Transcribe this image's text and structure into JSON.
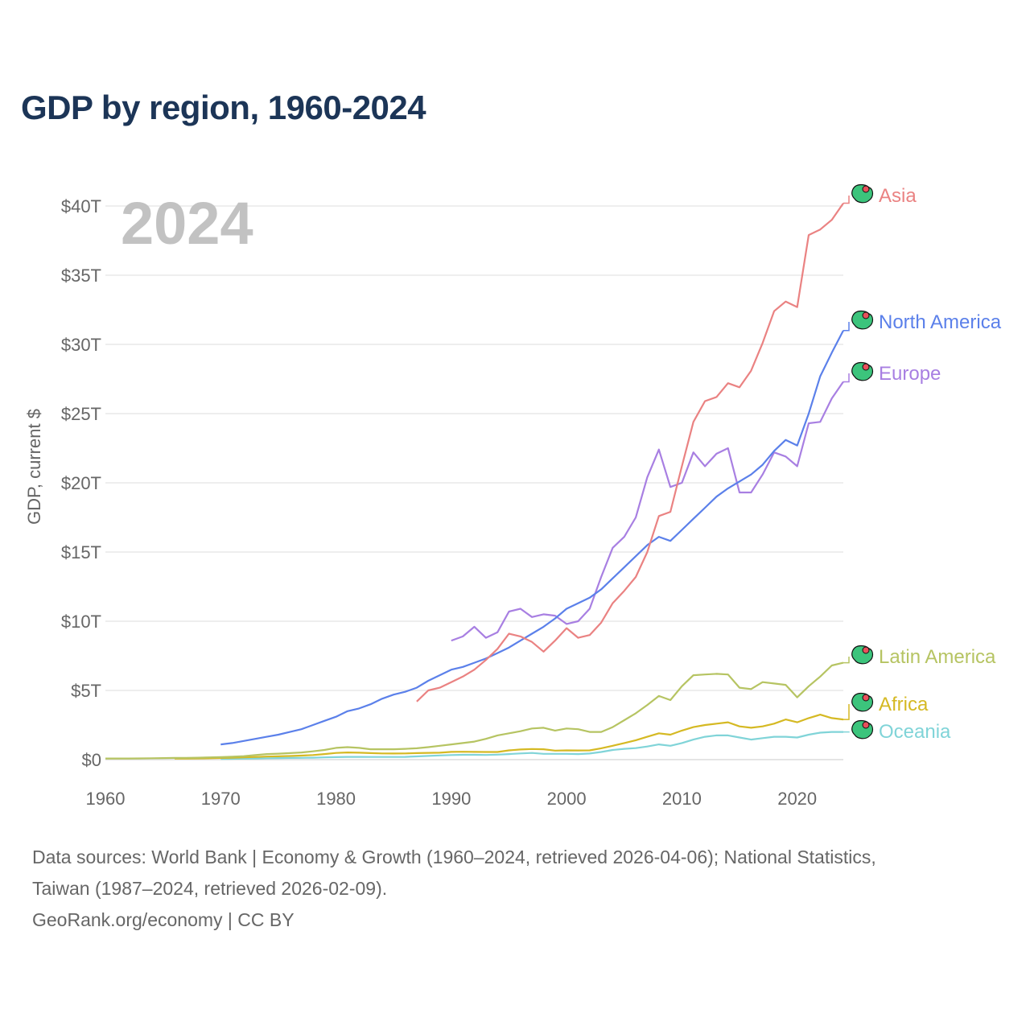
{
  "title": "GDP by region, 1960-2024",
  "footer": {
    "line1": "Data sources: World Bank | Economy & Growth (1960–2024, retrieved 2026-04-06); National Statistics,",
    "line2": "Taiwan (1987–2024, retrieved 2026-02-09).",
    "line3": "GeoRank.org/economy | CC BY"
  },
  "chart_data": {
    "type": "line",
    "title": "GDP by region, 1960-2024",
    "watermark_year": "2024",
    "xlabel": "",
    "ylabel": "GDP, current $",
    "xlim": [
      1960,
      2024
    ],
    "ylim": [
      0,
      40
    ],
    "y_unit": "trillion USD",
    "x_ticks": [
      1960,
      1970,
      1980,
      1990,
      2000,
      2010,
      2020
    ],
    "y_ticks": [
      {
        "v": 0,
        "label": "$0"
      },
      {
        "v": 5,
        "label": "$5T"
      },
      {
        "v": 10,
        "label": "$10T"
      },
      {
        "v": 15,
        "label": "$15T"
      },
      {
        "v": 20,
        "label": "$20T"
      },
      {
        "v": 25,
        "label": "$25T"
      },
      {
        "v": 30,
        "label": "$30T"
      },
      {
        "v": 35,
        "label": "$35T"
      },
      {
        "v": 40,
        "label": "$40T"
      }
    ],
    "grid": true,
    "legend": "end-of-line labels (right)",
    "series": [
      {
        "name": "Asia",
        "color": "#ea8282",
        "start": 1987,
        "values": [
          4.2,
          5.0,
          5.2,
          5.6,
          6.0,
          6.5,
          7.2,
          8.0,
          9.1,
          8.9,
          8.5,
          7.8,
          8.6,
          9.5,
          8.8,
          9.0,
          9.9,
          11.3,
          12.2,
          13.2,
          15.0,
          17.6,
          17.9,
          21.2,
          24.4,
          25.9,
          26.2,
          27.2,
          26.9,
          28.1,
          30.1,
          32.4,
          33.1,
          32.7,
          37.9,
          38.3,
          39.0,
          40.2
        ]
      },
      {
        "name": "North America",
        "color": "#5b80ea",
        "start": 1970,
        "values": [
          1.1,
          1.2,
          1.35,
          1.5,
          1.65,
          1.8,
          2.0,
          2.2,
          2.5,
          2.8,
          3.1,
          3.5,
          3.7,
          4.0,
          4.4,
          4.7,
          4.9,
          5.2,
          5.7,
          6.1,
          6.5,
          6.7,
          7.0,
          7.3,
          7.7,
          8.1,
          8.6,
          9.1,
          9.6,
          10.2,
          10.9,
          11.3,
          11.7,
          12.3,
          13.1,
          13.9,
          14.7,
          15.5,
          16.1,
          15.8,
          16.6,
          17.4,
          18.2,
          19.0,
          19.6,
          20.1,
          20.6,
          21.3,
          22.3,
          23.1,
          22.7,
          25.0,
          27.7,
          29.4,
          31.0
        ]
      },
      {
        "name": "Europe",
        "color": "#a87fe2",
        "start": 1990,
        "values": [
          8.6,
          8.9,
          9.6,
          8.8,
          9.2,
          10.7,
          10.9,
          10.3,
          10.5,
          10.4,
          9.8,
          10.0,
          10.9,
          13.2,
          15.3,
          16.1,
          17.5,
          20.4,
          22.4,
          19.7,
          20.0,
          22.2,
          21.2,
          22.1,
          22.5,
          19.3,
          19.3,
          20.6,
          22.2,
          21.9,
          21.2,
          24.3,
          24.4,
          26.1,
          27.3
        ]
      },
      {
        "name": "Latin America",
        "color": "#b6c462",
        "start": 1960,
        "values": [
          0.08,
          0.08,
          0.08,
          0.09,
          0.1,
          0.11,
          0.12,
          0.13,
          0.14,
          0.16,
          0.18,
          0.21,
          0.25,
          0.33,
          0.4,
          0.43,
          0.47,
          0.52,
          0.6,
          0.7,
          0.85,
          0.9,
          0.85,
          0.75,
          0.75,
          0.75,
          0.78,
          0.82,
          0.9,
          1.0,
          1.1,
          1.2,
          1.3,
          1.5,
          1.75,
          1.9,
          2.05,
          2.25,
          2.3,
          2.1,
          2.25,
          2.2,
          2.0,
          2.0,
          2.35,
          2.85,
          3.35,
          3.95,
          4.6,
          4.3,
          5.3,
          6.1,
          6.15,
          6.2,
          6.15,
          5.2,
          5.1,
          5.6,
          5.5,
          5.4,
          4.5,
          5.3,
          6.0,
          6.8,
          7.0
        ]
      },
      {
        "name": "Africa",
        "color": "#d5b923",
        "start": 1966,
        "values": [
          0.08,
          0.08,
          0.09,
          0.1,
          0.12,
          0.14,
          0.16,
          0.19,
          0.22,
          0.24,
          0.26,
          0.29,
          0.33,
          0.4,
          0.48,
          0.52,
          0.5,
          0.47,
          0.45,
          0.44,
          0.45,
          0.47,
          0.49,
          0.5,
          0.56,
          0.57,
          0.56,
          0.55,
          0.55,
          0.67,
          0.73,
          0.77,
          0.75,
          0.65,
          0.67,
          0.66,
          0.67,
          0.82,
          1.0,
          1.2,
          1.4,
          1.65,
          1.9,
          1.8,
          2.1,
          2.35,
          2.5,
          2.6,
          2.7,
          2.4,
          2.3,
          2.4,
          2.6,
          2.9,
          2.7,
          3.0,
          3.25,
          3.0,
          2.9
        ]
      },
      {
        "name": "Oceania",
        "color": "#80d4d8",
        "start": 1970,
        "values": [
          0.05,
          0.06,
          0.07,
          0.08,
          0.1,
          0.11,
          0.12,
          0.13,
          0.14,
          0.16,
          0.18,
          0.2,
          0.2,
          0.19,
          0.19,
          0.19,
          0.2,
          0.23,
          0.27,
          0.3,
          0.33,
          0.35,
          0.35,
          0.34,
          0.36,
          0.4,
          0.45,
          0.48,
          0.42,
          0.42,
          0.42,
          0.4,
          0.44,
          0.55,
          0.7,
          0.78,
          0.83,
          0.95,
          1.1,
          1.0,
          1.2,
          1.45,
          1.65,
          1.75,
          1.75,
          1.6,
          1.45,
          1.55,
          1.65,
          1.65,
          1.6,
          1.8,
          1.95,
          2.0,
          2.0
        ]
      }
    ]
  }
}
